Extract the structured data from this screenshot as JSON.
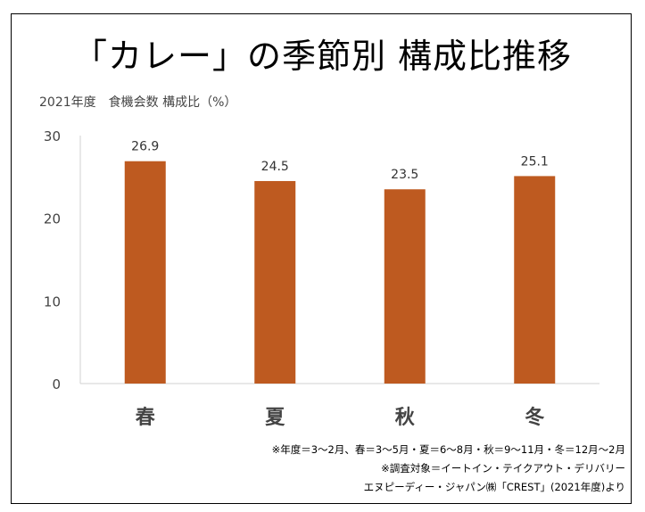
{
  "chart_data": {
    "type": "bar",
    "title": "「カレー」の季節別 構成比推移",
    "ylabel": "2021年度　食機会数 構成比（%）",
    "categories": [
      "春",
      "夏",
      "秋",
      "冬"
    ],
    "values": [
      26.9,
      24.5,
      23.5,
      25.1
    ],
    "value_labels": [
      "26.9",
      "24.5",
      "23.5",
      "25.1"
    ],
    "ylim": [
      0,
      30
    ],
    "yticks": [
      0,
      10,
      20,
      30
    ],
    "ytick_labels": [
      "0",
      "10",
      "20",
      "30"
    ],
    "grid": false,
    "bar_color": "#BE5A20"
  },
  "notes": [
    "※年度＝3～2月、春＝3～5月・夏＝6～8月・秋＝9～11月・冬＝12月～2月",
    "※調査対象＝イートイン・テイクアウト・デリバリー",
    "エヌピーディー・ジャパン㈱「CREST」(2021年度)より"
  ]
}
